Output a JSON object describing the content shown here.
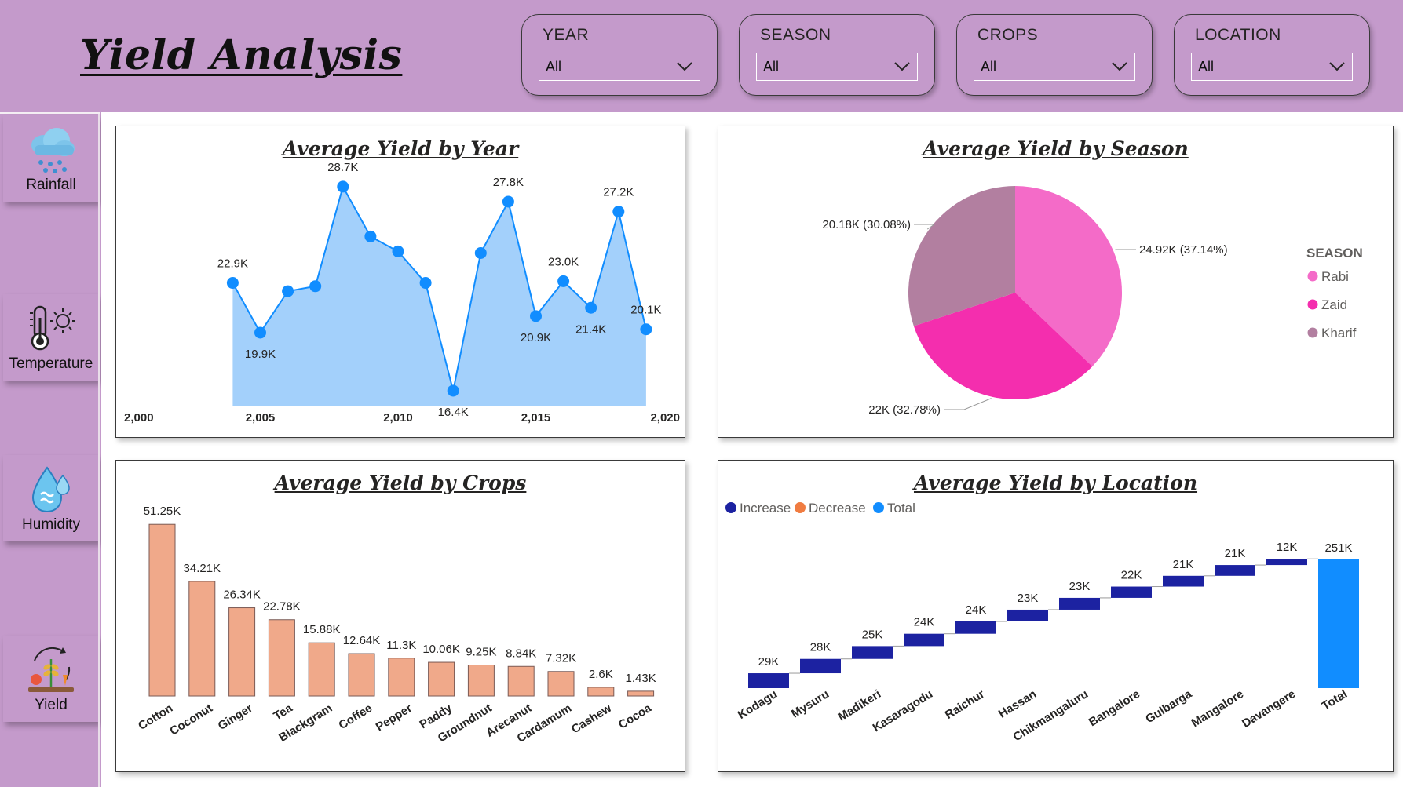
{
  "header": {
    "title": "Yield Analysis"
  },
  "filters": [
    {
      "label": "YEAR",
      "value": "All"
    },
    {
      "label": "SEASON",
      "value": "All"
    },
    {
      "label": "CROPS",
      "value": "All"
    },
    {
      "label": "LOCATION",
      "value": "All"
    }
  ],
  "sidebar": {
    "items": [
      {
        "label": "Rainfall",
        "icon": "rain-cloud-icon"
      },
      {
        "label": "Temperature",
        "icon": "thermometer-sun-icon"
      },
      {
        "label": "Humidity",
        "icon": "water-drop-icon"
      },
      {
        "label": "Yield",
        "icon": "crop-cycle-icon"
      }
    ]
  },
  "colors": {
    "background": "#c49acb",
    "line_fill": "#a3d0fb",
    "line_point": "#118dff",
    "bar": "#f0a98a",
    "rabi": "#f46bc8",
    "zaid": "#f42eae",
    "kharif": "#b27fa0",
    "increase": "#1c22a1",
    "decrease": "#f07c41",
    "total": "#118dff"
  },
  "chart_data": [
    {
      "id": "year",
      "type": "area",
      "title": "Average Yield by Year",
      "x": [
        2004,
        2005,
        2006,
        2007,
        2008,
        2009,
        2010,
        2011,
        2012,
        2013,
        2014,
        2015,
        2016,
        2017,
        2018,
        2019
      ],
      "y": [
        22.9,
        19.9,
        22.4,
        22.7,
        28.7,
        25.7,
        24.8,
        22.9,
        16.4,
        24.7,
        27.8,
        20.9,
        23.0,
        21.4,
        27.2,
        20.1
      ],
      "point_labels": [
        "22.9K",
        "19.9K",
        "",
        "",
        "28.7K",
        "",
        "",
        "",
        "16.4K",
        "",
        "27.8K",
        "20.9K",
        "23.0K",
        "21.4K",
        "27.2K",
        "20.1K"
      ],
      "x_ticks": [
        "2,000",
        "2,005",
        "2,010",
        "2,015",
        "2,020"
      ],
      "xlim": [
        2000,
        2020
      ],
      "ylim": [
        15.5,
        29.5
      ],
      "unit": "K",
      "grid": false
    },
    {
      "id": "season",
      "type": "pie",
      "title": "Average Yield by Season",
      "legend_title": "SEASON",
      "legend_position": "right",
      "slices": [
        {
          "name": "Rabi",
          "value": 24.92,
          "label": "24.92K (37.14%)"
        },
        {
          "name": "Zaid",
          "value": 22.0,
          "label": "22K (32.78%)"
        },
        {
          "name": "Kharif",
          "value": 20.18,
          "label": "20.18K (30.08%)"
        }
      ]
    },
    {
      "id": "crops",
      "type": "bar",
      "title": "Average Yield by Crops",
      "categories": [
        "Cotton",
        "Coconut",
        "Ginger",
        "Tea",
        "Blackgram",
        "Coffee",
        "Pepper",
        "Paddy",
        "Groundnut",
        "Arecanut",
        "Cardamum",
        "Cashew",
        "Cocoa"
      ],
      "values": [
        51.25,
        34.21,
        26.34,
        22.78,
        15.88,
        12.64,
        11.3,
        10.06,
        9.25,
        8.84,
        7.32,
        2.6,
        1.43
      ],
      "labels": [
        "51.25K",
        "34.21K",
        "26.34K",
        "22.78K",
        "15.88K",
        "12.64K",
        "11.3K",
        "10.06K",
        "9.25K",
        "8.84K",
        "7.32K",
        "2.6K",
        "1.43K"
      ],
      "ylim": [
        0,
        52
      ],
      "grid": false
    },
    {
      "id": "location",
      "type": "bar",
      "subtype": "waterfall",
      "title": "Average Yield by Location",
      "legend": [
        "Increase",
        "Decrease",
        "Total"
      ],
      "legend_position": "top-left",
      "categories": [
        "Kodagu",
        "Mysuru",
        "Madikeri",
        "Kasaragodu",
        "Raichur",
        "Hassan",
        "Chikmangaluru",
        "Bangalore",
        "Gulbarga",
        "Mangalore",
        "Davangere",
        "Total"
      ],
      "values": [
        29,
        28,
        25,
        24,
        24,
        23,
        23,
        22,
        21,
        21,
        12,
        251
      ],
      "labels": [
        "29K",
        "28K",
        "25K",
        "24K",
        "24K",
        "23K",
        "23K",
        "22K",
        "21K",
        "21K",
        "12K",
        "251K"
      ],
      "ylim": [
        0,
        260
      ],
      "grid": false
    }
  ]
}
